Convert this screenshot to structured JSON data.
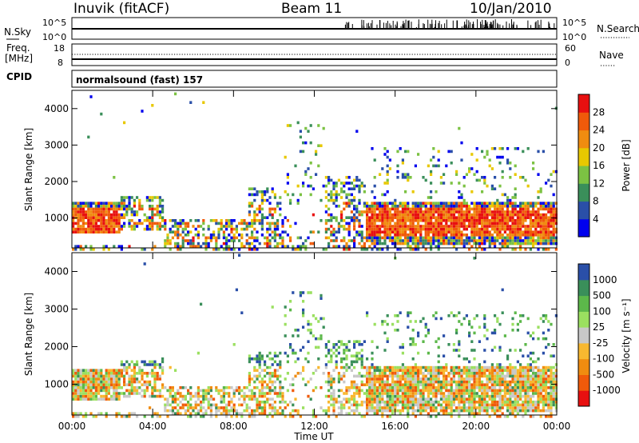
{
  "header": {
    "title": "Inuvik (fitACF)",
    "beam": "Beam 11",
    "date": "10/Jan/2010"
  },
  "strip_top": {
    "left_label": "N.Sky",
    "left_ticks": [
      "10^5",
      "10^0"
    ],
    "right_ticks": [
      "10^5",
      "10^0"
    ],
    "right_label": "N.Search"
  },
  "strip_freq": {
    "left_label_1": "Freq.",
    "left_label_2": "[MHz]",
    "left_ticks": [
      "18",
      "8"
    ],
    "right_ticks": [
      "60",
      "0"
    ],
    "right_label": "Nave"
  },
  "cpid": {
    "label": "CPID",
    "program": "normalsound (fast) 157"
  },
  "colors": {
    "power_scale": [
      "#0000ee",
      "#2a4fa8",
      "#3a8f5a",
      "#7cc243",
      "#e8c800",
      "#f08c10",
      "#f05a0a",
      "#e81010"
    ],
    "velocity_scale": [
      "#e81010",
      "#f05a0a",
      "#f08c10",
      "#f8b830",
      "#c8c8c8",
      "#9be060",
      "#5cb84a",
      "#3a8f5a",
      "#2a4fa8"
    ]
  },
  "chart_data": [
    {
      "type": "heatmap",
      "name": "power",
      "ylabel": "Slant Range [km]",
      "xlabel": "",
      "x_ticks": [
        "00:00",
        "04:00",
        "08:00",
        "12:00",
        "16:00",
        "20:00",
        "00:00"
      ],
      "y_ticks": [
        "1000",
        "2000",
        "3000",
        "4000"
      ],
      "ylim": [
        180,
        4500
      ],
      "colorbar_label": "Power [dB]",
      "colorbar_ticks": [
        "4",
        "8",
        "12",
        "16",
        "20",
        "24",
        "28"
      ],
      "colorbar_range": [
        0,
        30
      ]
    },
    {
      "type": "heatmap",
      "name": "velocity",
      "ylabel": "Slant Range [km]",
      "xlabel": "Time UT",
      "x_ticks": [
        "00:00",
        "04:00",
        "08:00",
        "12:00",
        "16:00",
        "20:00",
        "00:00"
      ],
      "y_ticks": [
        "1000",
        "2000",
        "3000",
        "4000"
      ],
      "ylim": [
        180,
        4500
      ],
      "colorbar_label": "Velocity [m s⁻¹]",
      "colorbar_ticks": [
        "1000",
        "500",
        "100",
        "25",
        "-25",
        "-100",
        "-500",
        "-1000"
      ]
    }
  ]
}
